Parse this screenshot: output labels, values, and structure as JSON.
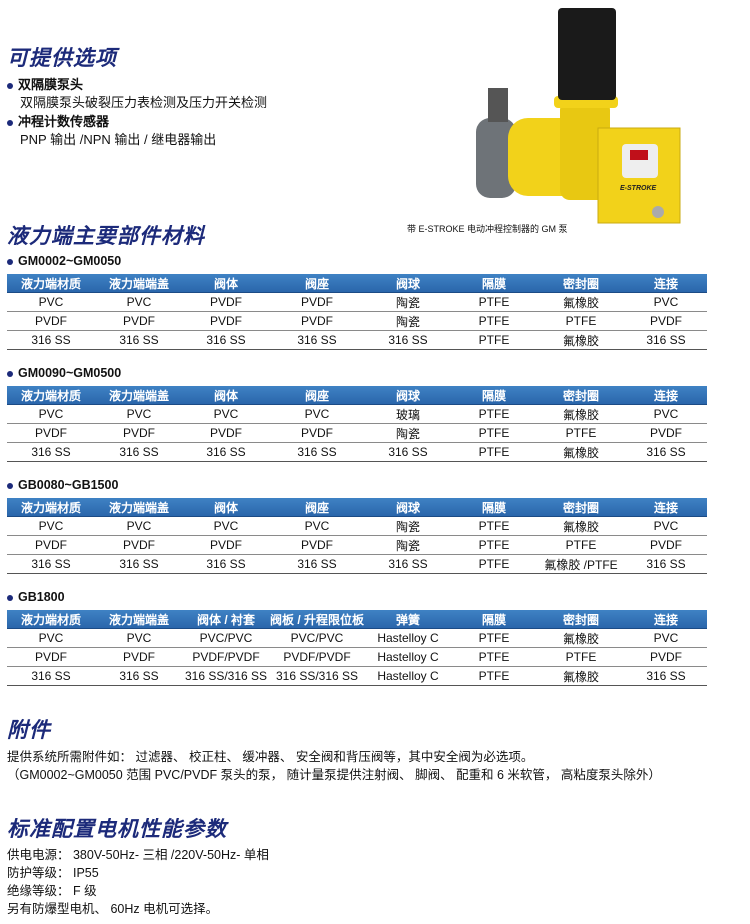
{
  "options": {
    "title": "可提供选项",
    "items": [
      {
        "label": "双隔膜泵头",
        "desc": "双隔膜泵头破裂压力表检测及压力开关检测"
      },
      {
        "label": "冲程计数传感器",
        "desc": "PNP 输出 /NPN 输出 / 继电器输出"
      }
    ]
  },
  "image": {
    "caption": "带 E-STROKE 电动冲程控制器的 GM 泵",
    "logo_text": "E-STROKE",
    "colors": {
      "body": "#f2d21a",
      "motor": "#1a1a1a",
      "head": "#6e7378"
    }
  },
  "materials": {
    "title": "液力端主要部件材料",
    "header_color": "#2f6fb2",
    "groups": [
      {
        "model": "GM0002~GM0050",
        "headers": [
          "液力端材质",
          "液力端端盖",
          "阀体",
          "阀座",
          "阀球",
          "隔膜",
          "密封圈",
          "连接"
        ],
        "rows": [
          [
            "PVC",
            "PVC",
            "PVDF",
            "PVDF",
            "陶瓷",
            "PTFE",
            "氟橡胶",
            "PVC"
          ],
          [
            "PVDF",
            "PVDF",
            "PVDF",
            "PVDF",
            "陶瓷",
            "PTFE",
            "PTFE",
            "PVDF"
          ],
          [
            "316 SS",
            "316 SS",
            "316 SS",
            "316 SS",
            "316 SS",
            "PTFE",
            "氟橡胶",
            "316 SS"
          ]
        ]
      },
      {
        "model": "GM0090~GM0500",
        "headers": [
          "液力端材质",
          "液力端端盖",
          "阀体",
          "阀座",
          "阀球",
          "隔膜",
          "密封圈",
          "连接"
        ],
        "rows": [
          [
            "PVC",
            "PVC",
            "PVC",
            "PVC",
            "玻璃",
            "PTFE",
            "氟橡胶",
            "PVC"
          ],
          [
            "PVDF",
            "PVDF",
            "PVDF",
            "PVDF",
            "陶瓷",
            "PTFE",
            "PTFE",
            "PVDF"
          ],
          [
            "316 SS",
            "316 SS",
            "316 SS",
            "316 SS",
            "316 SS",
            "PTFE",
            "氟橡胶",
            "316 SS"
          ]
        ]
      },
      {
        "model": "GB0080~GB1500",
        "headers": [
          "液力端材质",
          "液力端端盖",
          "阀体",
          "阀座",
          "阀球",
          "隔膜",
          "密封圈",
          "连接"
        ],
        "rows": [
          [
            "PVC",
            "PVC",
            "PVC",
            "PVC",
            "陶瓷",
            "PTFE",
            "氟橡胶",
            "PVC"
          ],
          [
            "PVDF",
            "PVDF",
            "PVDF",
            "PVDF",
            "陶瓷",
            "PTFE",
            "PTFE",
            "PVDF"
          ],
          [
            "316 SS",
            "316 SS",
            "316 SS",
            "316 SS",
            "316 SS",
            "PTFE",
            "氟橡胶 /PTFE",
            "316 SS"
          ]
        ]
      },
      {
        "model": "GB1800",
        "headers": [
          "液力端材质",
          "液力端端盖",
          "阀体 / 衬套",
          "阀板 / 升程限位板",
          "弹簧",
          "隔膜",
          "密封圈",
          "连接"
        ],
        "rows": [
          [
            "PVC",
            "PVC",
            "PVC/PVC",
            "PVC/PVC",
            "Hastelloy C",
            "PTFE",
            "氟橡胶",
            "PVC"
          ],
          [
            "PVDF",
            "PVDF",
            "PVDF/PVDF",
            "PVDF/PVDF",
            "Hastelloy C",
            "PTFE",
            "PTFE",
            "PVDF"
          ],
          [
            "316 SS",
            "316 SS",
            "316 SS/316 SS",
            "316 SS/316 SS",
            "Hastelloy C",
            "PTFE",
            "氟橡胶",
            "316 SS"
          ]
        ]
      }
    ]
  },
  "accessories": {
    "title": "附件",
    "lines": [
      "提供系统所需附件如： 过滤器、 校正柱、 缓冲器、 安全阀和背压阀等，其中安全阀为必选项。",
      "（GM0002~GM0050 范围 PVC/PVDF 泵头的泵， 随计量泵提供注射阀、 脚阀、 配重和 6 米软管， 高粘度泵头除外）"
    ]
  },
  "motor": {
    "title": "标准配置电机性能参数",
    "lines": [
      "供电电源：  380V-50Hz- 三相 /220V-50Hz- 单相",
      "防护等级：  IP55",
      "绝缘等级：  F 级",
      "另有防爆型电机、 60Hz 电机可选择。"
    ]
  }
}
